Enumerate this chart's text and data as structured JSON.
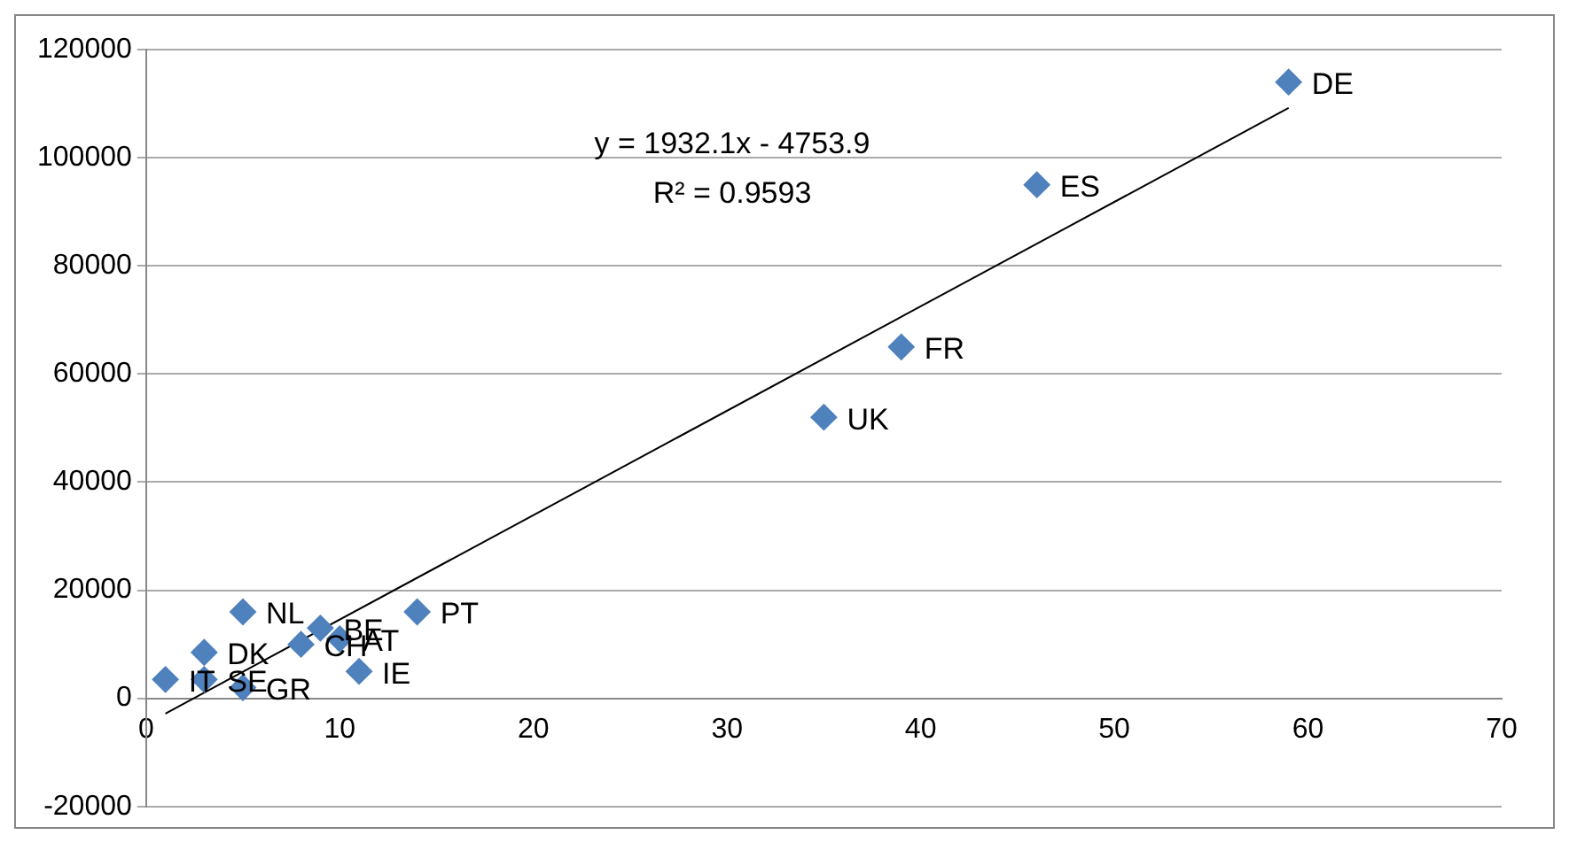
{
  "chart_data": {
    "type": "scatter",
    "series": [
      {
        "type": "scatter",
        "color": "#4f81bd",
        "marker": "diamond",
        "x": [
          59,
          46,
          39,
          35,
          14,
          5,
          1,
          3,
          3,
          5,
          9,
          8,
          10,
          11
        ],
        "values": [
          114000,
          95000,
          65000,
          52000,
          16000,
          16000,
          3500,
          8500,
          3500,
          2000,
          13000,
          10000,
          11000,
          5000
        ]
      },
      {
        "type": "line",
        "color": "#000000",
        "marker": "none",
        "x": [
          1,
          59
        ],
        "values": [
          -2800,
          109200
        ]
      }
    ],
    "annotations": [
      {
        "text": "DE",
        "x": 59,
        "y": 114000
      },
      {
        "text": "ES",
        "x": 46,
        "y": 95000
      },
      {
        "text": "FR",
        "x": 39,
        "y": 65000
      },
      {
        "text": "UK",
        "x": 35,
        "y": 52000
      },
      {
        "text": "PT",
        "x": 14,
        "y": 16000
      },
      {
        "text": "NL",
        "x": 5,
        "y": 16000
      },
      {
        "text": "IT",
        "x": 1,
        "y": 3500
      },
      {
        "text": "DK",
        "x": 3,
        "y": 8500
      },
      {
        "text": "SE",
        "x": 3,
        "y": 3500
      },
      {
        "text": "GR",
        "x": 5,
        "y": 2000
      },
      {
        "text": "BE",
        "x": 9,
        "y": 13000
      },
      {
        "text": "CH",
        "x": 8,
        "y": 10000
      },
      {
        "text": "AT",
        "x": 10,
        "y": 11000
      },
      {
        "text": "IE",
        "x": 11,
        "y": 5000
      },
      "y = 1932.1x - 4753.9",
      "R² = 0.9593"
    ],
    "xlim": [
      0,
      70
    ],
    "xticks": [
      0,
      10,
      20,
      30,
      40,
      50,
      60,
      70
    ],
    "ylim": [
      -20000,
      120000
    ],
    "yticks": [
      -20000,
      0,
      20000,
      40000,
      60000,
      80000,
      100000,
      120000
    ],
    "grid": "y",
    "legend": false
  }
}
